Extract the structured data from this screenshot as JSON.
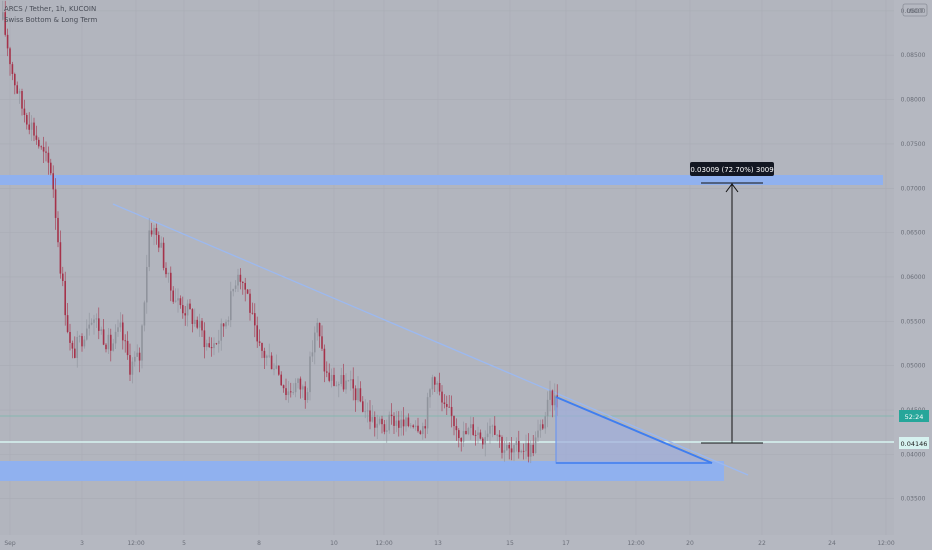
{
  "header": {
    "symbol_line": "ARCS / Tether, 1h, KUCOIN",
    "indicator_line": "Swiss Bottom & Long Term",
    "currency_badge": "USDT"
  },
  "chart_data": {
    "type": "candlestick",
    "symbol": "ARCS / Tether, 1h, KUCOIN",
    "currency": "USDT",
    "xlabel": "",
    "ylabel": "",
    "ylim": [
      0.0326,
      0.091
    ],
    "x_tick_labels": [
      "Sep",
      "3",
      "12:00",
      "5",
      "8",
      "10",
      "12:00",
      "13",
      "15",
      "17",
      "12:00",
      "20",
      "22",
      "24",
      "12:00"
    ],
    "y_tick_labels": [
      "0.09000",
      "0.08500",
      "0.08000",
      "0.07500",
      "0.07000",
      "0.06500",
      "0.06000",
      "0.05500",
      "0.05000",
      "0.04500",
      "0.04000",
      "0.03500"
    ],
    "price_path_close": [
      0.089,
      0.083,
      0.079,
      0.077,
      0.074,
      0.072,
      0.06,
      0.051,
      0.053,
      0.056,
      0.054,
      0.052,
      0.054,
      0.05,
      0.051,
      0.066,
      0.064,
      0.059,
      0.057,
      0.056,
      0.0545,
      0.052,
      0.053,
      0.056,
      0.061,
      0.058,
      0.052,
      0.051,
      0.05,
      0.047,
      0.048,
      0.047,
      0.055,
      0.049,
      0.048,
      0.048,
      0.047,
      0.045,
      0.0435,
      0.043,
      0.044,
      0.043,
      0.044,
      0.043,
      0.0495,
      0.045,
      0.044,
      0.042,
      0.043,
      0.042,
      0.044,
      0.041,
      0.04,
      0.041,
      0.0405,
      0.043,
      0.0465,
      0.0455
    ],
    "last_price": "0.04146",
    "countdown": "52:24",
    "measure_label": "0.03009 (72.70%) 3009",
    "zones": [
      {
        "name": "resistance",
        "from": 0.0713,
        "to": 0.072
      },
      {
        "name": "support",
        "from": 0.0357,
        "to": 0.0375
      }
    ],
    "descending_trendline": {
      "from": [
        0.0694
      ],
      "to": [
        0.0385
      ]
    },
    "horizontal_levels": [
      0.04146,
      0.044
    ]
  }
}
